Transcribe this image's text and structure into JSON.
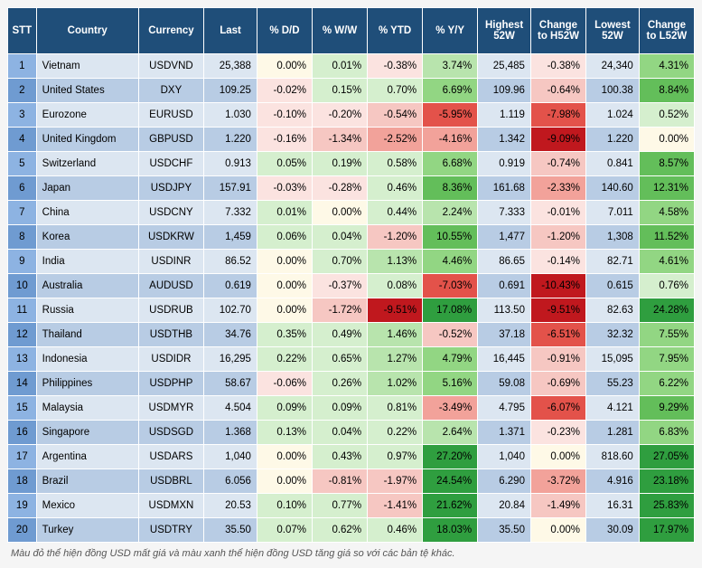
{
  "columns": [
    "STT",
    "Country",
    "Currency",
    "Last",
    "% D/D",
    "% W/W",
    "% YTD",
    "% Y/Y",
    "Highest 52W",
    "Change to H52W",
    "Lowest 52W",
    "Change to L52W"
  ],
  "heat_columns": [
    4,
    5,
    6,
    7,
    9,
    11
  ],
  "colors": {
    "header_bg": "#1f4e79",
    "header_fg": "#ffffff",
    "row_even": "#dce6f1",
    "row_odd": "#b8cce4",
    "stt_even": "#8db3e2",
    "stt_odd": "#6f9bd1",
    "heat": {
      "neg5": "#c0181e",
      "neg4": "#e3524a",
      "neg3": "#f2a29a",
      "neg2": "#f6c7c2",
      "neg1": "#fbe3e0",
      "zero": "#fef9e7",
      "pos1": "#d5efce",
      "pos2": "#b8e4ad",
      "pos3": "#92d683",
      "pos4": "#63be5a",
      "pos5": "#2f9e3f"
    }
  },
  "rows": [
    {
      "stt": 1,
      "country": "Vietnam",
      "currency": "USDVND",
      "last": "25,388",
      "dd": "0.00%",
      "ww": "0.01%",
      "ytd": "-0.38%",
      "yy": "3.74%",
      "h52": "25,485",
      "dh52": "-0.38%",
      "l52": "24,340",
      "dl52": "4.31%"
    },
    {
      "stt": 2,
      "country": "United States",
      "currency": "DXY",
      "last": "109.25",
      "dd": "-0.02%",
      "ww": "0.15%",
      "ytd": "0.70%",
      "yy": "6.69%",
      "h52": "109.96",
      "dh52": "-0.64%",
      "l52": "100.38",
      "dl52": "8.84%"
    },
    {
      "stt": 3,
      "country": "Eurozone",
      "currency": "EURUSD",
      "last": "1.030",
      "dd": "-0.10%",
      "ww": "-0.20%",
      "ytd": "-0.54%",
      "yy": "-5.95%",
      "h52": "1.119",
      "dh52": "-7.98%",
      "l52": "1.024",
      "dl52": "0.52%"
    },
    {
      "stt": 4,
      "country": "United Kingdom",
      "currency": "GBPUSD",
      "last": "1.220",
      "dd": "-0.16%",
      "ww": "-1.34%",
      "ytd": "-2.52%",
      "yy": "-4.16%",
      "h52": "1.342",
      "dh52": "-9.09%",
      "l52": "1.220",
      "dl52": "0.00%"
    },
    {
      "stt": 5,
      "country": "Switzerland",
      "currency": "USDCHF",
      "last": "0.913",
      "dd": "0.05%",
      "ww": "0.19%",
      "ytd": "0.58%",
      "yy": "6.68%",
      "h52": "0.919",
      "dh52": "-0.74%",
      "l52": "0.841",
      "dl52": "8.57%"
    },
    {
      "stt": 6,
      "country": "Japan",
      "currency": "USDJPY",
      "last": "157.91",
      "dd": "-0.03%",
      "ww": "-0.28%",
      "ytd": "0.46%",
      "yy": "8.36%",
      "h52": "161.68",
      "dh52": "-2.33%",
      "l52": "140.60",
      "dl52": "12.31%"
    },
    {
      "stt": 7,
      "country": "China",
      "currency": "USDCNY",
      "last": "7.332",
      "dd": "0.01%",
      "ww": "0.00%",
      "ytd": "0.44%",
      "yy": "2.24%",
      "h52": "7.333",
      "dh52": "-0.01%",
      "l52": "7.011",
      "dl52": "4.58%"
    },
    {
      "stt": 8,
      "country": "Korea",
      "currency": "USDKRW",
      "last": "1,459",
      "dd": "0.06%",
      "ww": "0.04%",
      "ytd": "-1.20%",
      "yy": "10.55%",
      "h52": "1,477",
      "dh52": "-1.20%",
      "l52": "1,308",
      "dl52": "11.52%"
    },
    {
      "stt": 9,
      "country": "India",
      "currency": "USDINR",
      "last": "86.52",
      "dd": "0.00%",
      "ww": "0.70%",
      "ytd": "1.13%",
      "yy": "4.46%",
      "h52": "86.65",
      "dh52": "-0.14%",
      "l52": "82.71",
      "dl52": "4.61%"
    },
    {
      "stt": 10,
      "country": "Australia",
      "currency": "AUDUSD",
      "last": "0.619",
      "dd": "0.00%",
      "ww": "-0.37%",
      "ytd": "0.08%",
      "yy": "-7.03%",
      "h52": "0.691",
      "dh52": "-10.43%",
      "l52": "0.615",
      "dl52": "0.76%"
    },
    {
      "stt": 11,
      "country": "Russia",
      "currency": "USDRUB",
      "last": "102.70",
      "dd": "0.00%",
      "ww": "-1.72%",
      "ytd": "-9.51%",
      "yy": "17.08%",
      "h52": "113.50",
      "dh52": "-9.51%",
      "l52": "82.63",
      "dl52": "24.28%"
    },
    {
      "stt": 12,
      "country": "Thailand",
      "currency": "USDTHB",
      "last": "34.76",
      "dd": "0.35%",
      "ww": "0.49%",
      "ytd": "1.46%",
      "yy": "-0.52%",
      "h52": "37.18",
      "dh52": "-6.51%",
      "l52": "32.32",
      "dl52": "7.55%"
    },
    {
      "stt": 13,
      "country": "Indonesia",
      "currency": "USDIDR",
      "last": "16,295",
      "dd": "0.22%",
      "ww": "0.65%",
      "ytd": "1.27%",
      "yy": "4.79%",
      "h52": "16,445",
      "dh52": "-0.91%",
      "l52": "15,095",
      "dl52": "7.95%"
    },
    {
      "stt": 14,
      "country": "Philippines",
      "currency": "USDPHP",
      "last": "58.67",
      "dd": "-0.06%",
      "ww": "0.26%",
      "ytd": "1.02%",
      "yy": "5.16%",
      "h52": "59.08",
      "dh52": "-0.69%",
      "l52": "55.23",
      "dl52": "6.22%"
    },
    {
      "stt": 15,
      "country": "Malaysia",
      "currency": "USDMYR",
      "last": "4.504",
      "dd": "0.09%",
      "ww": "0.09%",
      "ytd": "0.81%",
      "yy": "-3.49%",
      "h52": "4.795",
      "dh52": "-6.07%",
      "l52": "4.121",
      "dl52": "9.29%"
    },
    {
      "stt": 16,
      "country": "Singapore",
      "currency": "USDSGD",
      "last": "1.368",
      "dd": "0.13%",
      "ww": "0.04%",
      "ytd": "0.22%",
      "yy": "2.64%",
      "h52": "1.371",
      "dh52": "-0.23%",
      "l52": "1.281",
      "dl52": "6.83%"
    },
    {
      "stt": 17,
      "country": "Argentina",
      "currency": "USDARS",
      "last": "1,040",
      "dd": "0.00%",
      "ww": "0.43%",
      "ytd": "0.97%",
      "yy": "27.20%",
      "h52": "1,040",
      "dh52": "0.00%",
      "l52": "818.60",
      "dl52": "27.05%"
    },
    {
      "stt": 18,
      "country": "Brazil",
      "currency": "USDBRL",
      "last": "6.056",
      "dd": "0.00%",
      "ww": "-0.81%",
      "ytd": "-1.97%",
      "yy": "24.54%",
      "h52": "6.290",
      "dh52": "-3.72%",
      "l52": "4.916",
      "dl52": "23.18%"
    },
    {
      "stt": 19,
      "country": "Mexico",
      "currency": "USDMXN",
      "last": "20.53",
      "dd": "0.10%",
      "ww": "0.77%",
      "ytd": "-1.41%",
      "yy": "21.62%",
      "h52": "20.84",
      "dh52": "-1.49%",
      "l52": "16.31",
      "dl52": "25.83%"
    },
    {
      "stt": 20,
      "country": "Turkey",
      "currency": "USDTRY",
      "last": "35.50",
      "dd": "0.07%",
      "ww": "0.62%",
      "ytd": "0.46%",
      "yy": "18.03%",
      "h52": "35.50",
      "dh52": "0.00%",
      "l52": "30.09",
      "dl52": "17.97%"
    }
  ],
  "footnote": "Màu đỏ thể hiện đồng USD mất giá và màu xanh thể hiện đồng USD tăng giá so với các bản tệ khác."
}
